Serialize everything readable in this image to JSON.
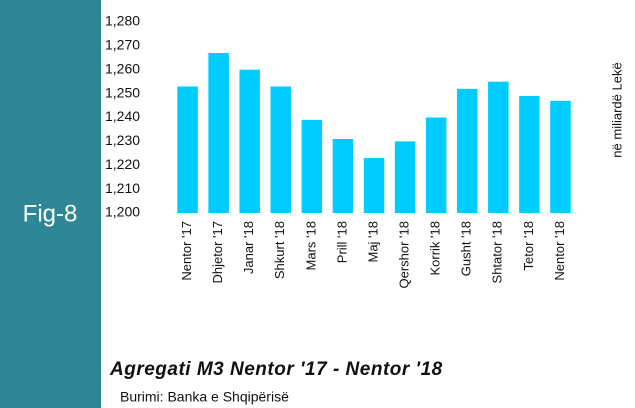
{
  "chart_data": {
    "type": "bar",
    "figure_label": "Fig-8",
    "title": "Agregati M3 Nentor '17 - Nentor '18",
    "source": "Burimi: Banka e Shqipërisë",
    "y_label": "në miliardë Lekë",
    "categories": [
      "Nentor '17",
      "Dhjetor '17",
      "Janar '18",
      "Shkurt '18",
      "Mars '18",
      "Prill '18",
      "Maj '18",
      "Qershor '18",
      "Korrik '18",
      "Gusht '18",
      "Shtator '18",
      "Tetor '18",
      "Nentor '18"
    ],
    "values": [
      1253,
      1267,
      1260,
      1253,
      1239,
      1231,
      1223,
      1230,
      1240,
      1252,
      1255,
      1249,
      1247
    ],
    "color": "#00ccff",
    "ylim": [
      1200,
      1280
    ],
    "yticks": [
      {
        "value": 1200,
        "label": "1,200"
      },
      {
        "value": 1210,
        "label": "1,210"
      },
      {
        "value": 1220,
        "label": "1,220"
      },
      {
        "value": 1230,
        "label": "1,230"
      },
      {
        "value": 1240,
        "label": "1,240"
      },
      {
        "value": 1250,
        "label": "1,250"
      },
      {
        "value": 1260,
        "label": "1,260"
      },
      {
        "value": 1270,
        "label": "1,270"
      },
      {
        "value": 1280,
        "label": "1,280"
      }
    ],
    "grid": false
  }
}
